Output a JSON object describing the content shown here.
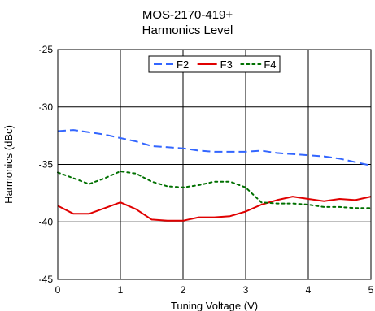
{
  "chart_data": {
    "type": "line",
    "title": "MOS-2170-419+",
    "subtitle": "Harmonics Level",
    "xlabel": "Tuning Voltage (V)",
    "ylabel": "Harmonics (dBc)",
    "xlim": [
      0,
      5
    ],
    "ylim": [
      -45,
      -25
    ],
    "xticks": [
      "0",
      "1",
      "2",
      "3",
      "4",
      "5"
    ],
    "yticks": [
      "-25",
      "-30",
      "-35",
      "-40",
      "-45"
    ],
    "grid": true,
    "legend_position": "top-center",
    "series": [
      {
        "name": "F2",
        "color": "#3366ff",
        "style": "dashed",
        "x": [
          0,
          0.25,
          0.5,
          0.75,
          1.0,
          1.25,
          1.5,
          1.75,
          2.0,
          2.25,
          2.5,
          2.75,
          3.0,
          3.25,
          3.5,
          3.75,
          4.0,
          4.25,
          4.5,
          4.75,
          5.0
        ],
        "y": [
          -32.1,
          -32.0,
          -32.2,
          -32.4,
          -32.7,
          -33.0,
          -33.4,
          -33.5,
          -33.6,
          -33.8,
          -33.9,
          -33.9,
          -33.9,
          -33.8,
          -34.0,
          -34.1,
          -34.2,
          -34.3,
          -34.5,
          -34.8,
          -35.1
        ]
      },
      {
        "name": "F3",
        "color": "#e00000",
        "style": "solid",
        "x": [
          0,
          0.25,
          0.5,
          0.75,
          1.0,
          1.25,
          1.5,
          1.75,
          2.0,
          2.25,
          2.5,
          2.75,
          3.0,
          3.25,
          3.5,
          3.75,
          4.0,
          4.25,
          4.5,
          4.75,
          5.0
        ],
        "y": [
          -38.6,
          -39.3,
          -39.3,
          -38.8,
          -38.3,
          -38.9,
          -39.8,
          -39.9,
          -39.9,
          -39.6,
          -39.6,
          -39.5,
          -39.1,
          -38.5,
          -38.1,
          -37.8,
          -38.0,
          -38.2,
          -38.0,
          -38.1,
          -37.8
        ]
      },
      {
        "name": "F4",
        "color": "#007000",
        "style": "dotted",
        "x": [
          0,
          0.25,
          0.5,
          0.75,
          1.0,
          1.25,
          1.5,
          1.75,
          2.0,
          2.25,
          2.5,
          2.75,
          3.0,
          3.25,
          3.5,
          3.75,
          4.0,
          4.25,
          4.5,
          4.75,
          5.0
        ],
        "y": [
          -35.7,
          -36.2,
          -36.7,
          -36.2,
          -35.6,
          -35.8,
          -36.5,
          -36.9,
          -37.0,
          -36.8,
          -36.5,
          -36.5,
          -37.0,
          -38.3,
          -38.4,
          -38.4,
          -38.5,
          -38.7,
          -38.7,
          -38.8,
          -38.8
        ]
      }
    ]
  }
}
